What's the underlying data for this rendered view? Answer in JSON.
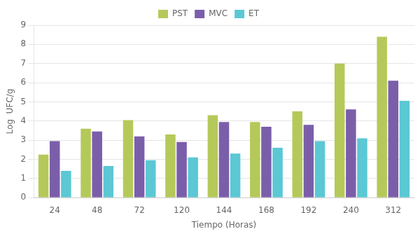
{
  "chart_data": {
    "type": "bar",
    "categories": [
      "24",
      "48",
      "72",
      "120",
      "144",
      "168",
      "192",
      "240",
      "312"
    ],
    "series": [
      {
        "name": "PST",
        "color": "#b5c95a",
        "values": [
          2.25,
          3.6,
          4.05,
          3.3,
          4.3,
          3.95,
          4.5,
          7.0,
          8.4
        ]
      },
      {
        "name": "MVC",
        "color": "#7b5eaa",
        "values": [
          2.95,
          3.45,
          3.2,
          2.9,
          3.95,
          3.7,
          3.8,
          4.6,
          6.1
        ]
      },
      {
        "name": "ET",
        "color": "#5bc8d4",
        "values": [
          1.4,
          1.65,
          1.95,
          2.1,
          2.3,
          2.6,
          2.95,
          3.1,
          5.05
        ]
      }
    ],
    "xlabel": "Tiempo (Horas)",
    "ylabel": "Log  UFC/g",
    "ylim": [
      0,
      9
    ],
    "yticks": [
      0,
      1,
      2,
      3,
      4,
      5,
      6,
      7,
      8,
      9
    ],
    "grid": true,
    "legend": "top"
  }
}
